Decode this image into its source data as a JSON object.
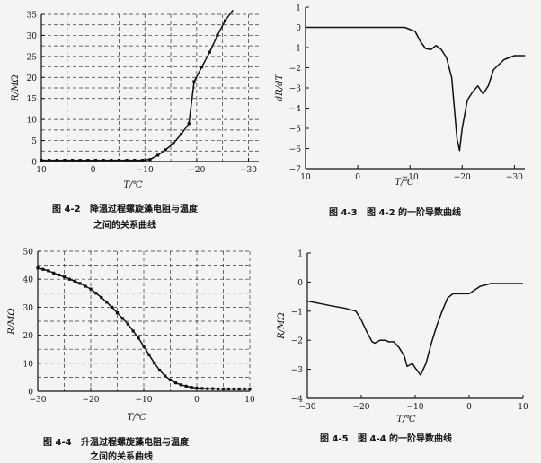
{
  "figures": [
    {
      "caption_num": "图 4-2",
      "caption_line1": "降温过程螺旋藻电阻与温度",
      "caption_line2": "之间的关系曲线"
    },
    {
      "caption_num": "图 4-3",
      "caption_line1": "图 4-2 的一阶导数曲线",
      "caption_line2": ""
    },
    {
      "caption_num": "图 4-4",
      "caption_line1": "升温过程螺旋藻电阻与温度",
      "caption_line2": "之间的关系曲线"
    },
    {
      "caption_num": "图 4-5",
      "caption_line1": "图 4-4 的一阶导数曲线",
      "caption_line2": ""
    }
  ],
  "chart_data": [
    {
      "type": "line",
      "title": "",
      "xlabel": "T/℃",
      "ylabel": "R/MΩ",
      "xlim": [
        10,
        -32
      ],
      "ylim": [
        0,
        35
      ],
      "xticks": [
        10,
        0,
        -10,
        -20,
        -30
      ],
      "yticks": [
        0,
        5,
        10,
        15,
        20,
        25,
        30,
        35
      ],
      "grid": true,
      "grid_style": "dashed",
      "x": [
        10,
        8.5,
        7,
        5.5,
        4,
        2.5,
        1,
        -0.5,
        -2,
        -3.5,
        -5,
        -6.5,
        -8,
        -9.5,
        -11,
        -12.5,
        -14,
        -15.5,
        -17,
        -18.5,
        -19.5,
        -21,
        -22.5,
        -24,
        -25.5,
        -27
      ],
      "series": [
        {
          "values": [
            0.3,
            0.3,
            0.3,
            0.3,
            0.3,
            0.3,
            0.3,
            0.3,
            0.3,
            0.3,
            0.3,
            0.3,
            0.3,
            0.3,
            0.5,
            1.5,
            2.8,
            4.3,
            6.5,
            9.0,
            19.0,
            22.5,
            26.0,
            30.0,
            33.5,
            36.0
          ]
        }
      ]
    },
    {
      "type": "line",
      "title": "",
      "xlabel": "T/℃",
      "ylabel": "dR/dT",
      "xlim": [
        10,
        -32
      ],
      "ylim": [
        -7,
        1
      ],
      "xticks": [
        10,
        0,
        -10,
        -20,
        -30
      ],
      "yticks": [
        1,
        0,
        -1,
        -2,
        -3,
        -4,
        -5,
        -6,
        -7
      ],
      "grid": false,
      "x": [
        10,
        0,
        -5,
        -9,
        -11,
        -12,
        -13,
        -14,
        -15,
        -16,
        -17,
        -18,
        -19,
        -19.5,
        -20,
        -21,
        -22,
        -23,
        -24,
        -25,
        -26,
        -28,
        -30,
        -32
      ],
      "series": [
        {
          "values": [
            0,
            0,
            0,
            0,
            -0.2,
            -0.7,
            -1.05,
            -1.1,
            -0.9,
            -1.1,
            -1.5,
            -2.5,
            -5.5,
            -6.1,
            -5.0,
            -3.6,
            -3.2,
            -2.9,
            -3.3,
            -2.9,
            -2.1,
            -1.6,
            -1.4,
            -1.4
          ]
        }
      ]
    },
    {
      "type": "line",
      "title": "",
      "xlabel": "T/℃",
      "ylabel": "R/MΩ",
      "xlim": [
        -30,
        10
      ],
      "ylim": [
        0,
        50
      ],
      "xticks": [
        -30,
        -20,
        -10,
        0,
        10
      ],
      "yticks": [
        0,
        10,
        20,
        30,
        40,
        50
      ],
      "grid": true,
      "grid_style": "dashed",
      "x": [
        -30,
        -29,
        -28,
        -27,
        -26,
        -25,
        -24,
        -23,
        -22,
        -21,
        -20,
        -19,
        -18,
        -17,
        -16,
        -15,
        -14,
        -13,
        -12,
        -11,
        -10,
        -9,
        -8,
        -7,
        -6,
        -5,
        -4,
        -3,
        -2,
        -1,
        0,
        1,
        2,
        3,
        4,
        5,
        6,
        7,
        8,
        9,
        10
      ],
      "series": [
        {
          "values": [
            44,
            43.5,
            43,
            42.2,
            41.5,
            40.8,
            40,
            39.3,
            38.5,
            37.5,
            36.5,
            35,
            33.5,
            31.8,
            30,
            28,
            26,
            24,
            21.5,
            19,
            16,
            13,
            10,
            7.5,
            5.5,
            4,
            3,
            2.3,
            1.8,
            1.4,
            1.1,
            1,
            0.9,
            0.9,
            0.8,
            0.8,
            0.8,
            0.8,
            0.8,
            0.8,
            0.8
          ]
        }
      ]
    },
    {
      "type": "line",
      "title": "",
      "xlabel": "T/℃",
      "ylabel": "R/MΩ",
      "xlim": [
        -30,
        10
      ],
      "ylim": [
        -4,
        1
      ],
      "xticks": [
        -30,
        -20,
        -10,
        0,
        10
      ],
      "yticks": [
        1,
        0,
        -1,
        -2,
        -3,
        -4
      ],
      "grid": false,
      "x": [
        -30,
        -26,
        -23,
        -21,
        -20,
        -19,
        -18,
        -17.5,
        -16.5,
        -15.5,
        -15,
        -14,
        -13,
        -12,
        -11.5,
        -10.5,
        -10,
        -9,
        -8,
        -7,
        -6,
        -5,
        -4,
        -3,
        -2,
        0,
        2,
        4,
        6,
        8,
        10
      ],
      "series": [
        {
          "values": [
            -0.65,
            -0.8,
            -0.9,
            -1.0,
            -1.3,
            -1.7,
            -2.05,
            -2.1,
            -2.0,
            -2.0,
            -2.05,
            -2.05,
            -2.25,
            -2.55,
            -2.9,
            -2.8,
            -2.95,
            -3.2,
            -2.8,
            -2.1,
            -1.5,
            -1.0,
            -0.55,
            -0.4,
            -0.4,
            -0.4,
            -0.15,
            -0.05,
            -0.05,
            -0.05,
            -0.05
          ]
        }
      ]
    }
  ]
}
